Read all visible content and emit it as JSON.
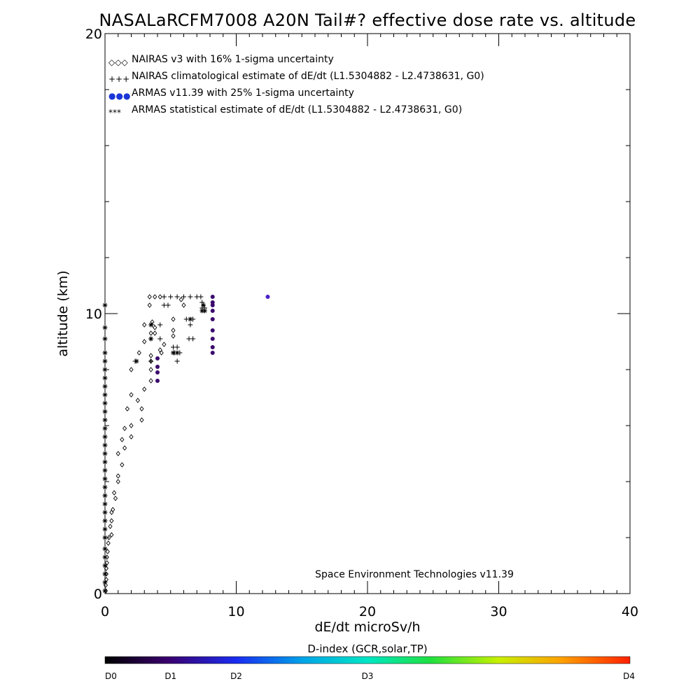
{
  "chart_data": {
    "type": "scatter",
    "title": "NASALaRCFM7008  A20N Tail#? effective dose rate vs. altitude",
    "xlabel": "dE/dt microSv/h",
    "ylabel": "altitude (km)",
    "xlim": [
      0,
      40
    ],
    "ylim": [
      0,
      20
    ],
    "x_ticks": [
      0,
      10,
      20,
      30,
      40
    ],
    "y_ticks": [
      0,
      10,
      20
    ],
    "x_tick_labels": [
      "0",
      "10",
      "20",
      "30",
      "40"
    ],
    "y_tick_labels": [
      "0",
      "10",
      "20"
    ],
    "grid": false,
    "legend_position": "top-left",
    "credit": "Space Environment Technologies v11.39",
    "series": [
      {
        "name": "NAIRAS v3 with 16% 1-sigma uncertainty",
        "marker": "diamond",
        "color": "#000000",
        "legend_symbol": "◇◇◇",
        "points": [
          [
            0.05,
            0.1
          ],
          [
            0.05,
            0.3
          ],
          [
            0.1,
            0.5
          ],
          [
            0.1,
            0.7
          ],
          [
            0.1,
            0.9
          ],
          [
            0.15,
            1.1
          ],
          [
            0.15,
            1.3
          ],
          [
            0.2,
            1.5
          ],
          [
            0.25,
            1.8
          ],
          [
            0.3,
            2.0
          ],
          [
            0.5,
            2.1
          ],
          [
            0.4,
            2.4
          ],
          [
            0.5,
            2.6
          ],
          [
            0.5,
            2.9
          ],
          [
            0.6,
            3.0
          ],
          [
            0.8,
            3.4
          ],
          [
            0.7,
            3.6
          ],
          [
            1.0,
            4.0
          ],
          [
            1.0,
            4.2
          ],
          [
            1.3,
            4.6
          ],
          [
            1.0,
            5.0
          ],
          [
            1.5,
            5.2
          ],
          [
            1.3,
            5.5
          ],
          [
            2.0,
            5.6
          ],
          [
            1.5,
            5.9
          ],
          [
            2.0,
            6.0
          ],
          [
            2.8,
            6.2
          ],
          [
            1.7,
            6.6
          ],
          [
            2.8,
            6.6
          ],
          [
            2.5,
            6.9
          ],
          [
            2.0,
            7.1
          ],
          [
            3.0,
            7.3
          ],
          [
            3.5,
            7.6
          ],
          [
            2.0,
            8.0
          ],
          [
            3.5,
            8.0
          ],
          [
            3.5,
            8.3
          ],
          [
            3.5,
            8.5
          ],
          [
            2.6,
            8.6
          ],
          [
            4.3,
            8.6
          ],
          [
            4.5,
            8.9
          ],
          [
            4.2,
            8.7
          ],
          [
            3.0,
            9.0
          ],
          [
            3.5,
            9.3
          ],
          [
            3.8,
            9.3
          ],
          [
            5.2,
            9.2
          ],
          [
            3.8,
            9.5
          ],
          [
            3.0,
            9.6
          ],
          [
            5.2,
            9.4
          ],
          [
            3.6,
            9.7
          ],
          [
            5.2,
            9.8
          ],
          [
            3.4,
            10.3
          ],
          [
            6.0,
            10.3
          ],
          [
            5.8,
            10.5
          ],
          [
            3.4,
            10.6
          ],
          [
            3.8,
            10.6
          ],
          [
            4.2,
            10.6
          ]
        ]
      },
      {
        "name": "NAIRAS climatological estimate of dE/dt (L1.5304882 - L2.4738631, G0)",
        "marker": "plus",
        "color": "#000000",
        "legend_symbol": "+++",
        "points": [
          [
            2.3,
            8.3
          ],
          [
            3.5,
            8.3
          ],
          [
            5.5,
            8.3
          ],
          [
            5.3,
            8.6
          ],
          [
            5.7,
            8.6
          ],
          [
            5.2,
            8.8
          ],
          [
            5.5,
            8.8
          ],
          [
            3.5,
            9.1
          ],
          [
            4.2,
            9.1
          ],
          [
            6.4,
            9.1
          ],
          [
            6.7,
            9.1
          ],
          [
            3.6,
            9.6
          ],
          [
            4.2,
            9.6
          ],
          [
            6.5,
            9.6
          ],
          [
            6.2,
            9.8
          ],
          [
            6.7,
            9.8
          ],
          [
            4.5,
            10.3
          ],
          [
            4.8,
            10.3
          ],
          [
            7.4,
            10.2
          ],
          [
            7.6,
            10.2
          ],
          [
            7.4,
            10.4
          ],
          [
            4.5,
            10.6
          ],
          [
            5.0,
            10.6
          ],
          [
            5.5,
            10.6
          ],
          [
            6.0,
            10.6
          ],
          [
            6.5,
            10.6
          ],
          [
            7.0,
            10.6
          ],
          [
            7.3,
            10.6
          ]
        ]
      },
      {
        "name": "ARMAS v11.39 with 25% 1-sigma uncertainty",
        "marker": "filled-circle",
        "color": "#3b0a6e",
        "legend_symbol": "●●●",
        "legend_color": "#1a36d8",
        "points": [
          [
            4.0,
            7.6
          ],
          [
            4.0,
            7.9
          ],
          [
            4.0,
            8.1
          ],
          [
            4.0,
            8.4
          ],
          [
            8.2,
            8.6
          ],
          [
            8.2,
            8.8
          ],
          [
            8.2,
            9.1
          ],
          [
            8.2,
            9.4
          ],
          [
            8.2,
            9.8
          ],
          [
            8.2,
            10.1
          ],
          [
            8.2,
            10.3
          ],
          [
            8.2,
            10.4
          ],
          [
            8.2,
            10.6
          ],
          [
            12.4,
            10.6
          ]
        ],
        "point_colors": [
          "#3b0a6e",
          "#3b0a6e",
          "#3b0a6e",
          "#3b0a6e",
          "#3b0a6e",
          "#3b0a6e",
          "#3b0a6e",
          "#3b0a6e",
          "#3b0a6e",
          "#3b0a6e",
          "#3b0a6e",
          "#3b0a6e",
          "#3b0a6e",
          "#4a22c8"
        ]
      },
      {
        "name": "ARMAS statistical estimate of dE/dt (L1.5304882 - L2.4738631, G0)",
        "marker": "asterisk",
        "color": "#000000",
        "legend_symbol": "***",
        "points": [
          [
            0.0,
            0.1
          ],
          [
            0.0,
            0.4
          ],
          [
            0.0,
            0.7
          ],
          [
            0.0,
            1.0
          ],
          [
            0.0,
            1.3
          ],
          [
            0.0,
            1.6
          ],
          [
            0.0,
            2.0
          ],
          [
            0.0,
            2.3
          ],
          [
            0.0,
            2.6
          ],
          [
            0.0,
            2.9
          ],
          [
            0.0,
            3.2
          ],
          [
            0.0,
            3.5
          ],
          [
            0.0,
            3.8
          ],
          [
            0.0,
            4.1
          ],
          [
            0.0,
            4.4
          ],
          [
            0.0,
            4.7
          ],
          [
            0.0,
            5.0
          ],
          [
            0.0,
            5.3
          ],
          [
            0.0,
            5.6
          ],
          [
            0.0,
            5.9
          ],
          [
            0.0,
            6.2
          ],
          [
            0.0,
            6.5
          ],
          [
            0.0,
            6.8
          ],
          [
            0.0,
            7.1
          ],
          [
            0.0,
            7.4
          ],
          [
            0.0,
            7.7
          ],
          [
            0.0,
            8.0
          ],
          [
            0.0,
            8.3
          ],
          [
            0.0,
            8.6
          ],
          [
            0.0,
            9.1
          ],
          [
            0.0,
            9.5
          ],
          [
            0.0,
            10.3
          ],
          [
            2.4,
            8.3
          ],
          [
            3.5,
            9.1
          ],
          [
            3.5,
            9.6
          ],
          [
            5.2,
            8.6
          ],
          [
            5.5,
            8.6
          ],
          [
            6.5,
            9.8
          ],
          [
            7.4,
            10.1
          ],
          [
            7.6,
            10.1
          ],
          [
            7.5,
            10.3
          ]
        ]
      }
    ],
    "colorbar": {
      "title": "D-index (GCR,solar,TP)",
      "labels": [
        "D0",
        "D1",
        "D2",
        "D3",
        "D4"
      ],
      "label_positions": [
        0,
        0.125,
        0.25,
        0.5,
        1.0
      ],
      "stops": [
        {
          "pos": 0.0,
          "color": "#000000"
        },
        {
          "pos": 0.12,
          "color": "#3a006e"
        },
        {
          "pos": 0.25,
          "color": "#1a2cf0"
        },
        {
          "pos": 0.38,
          "color": "#00a6e8"
        },
        {
          "pos": 0.5,
          "color": "#00e6c4"
        },
        {
          "pos": 0.62,
          "color": "#20e040"
        },
        {
          "pos": 0.75,
          "color": "#c8f000"
        },
        {
          "pos": 0.87,
          "color": "#ffa000"
        },
        {
          "pos": 1.0,
          "color": "#ff2000"
        }
      ]
    }
  }
}
